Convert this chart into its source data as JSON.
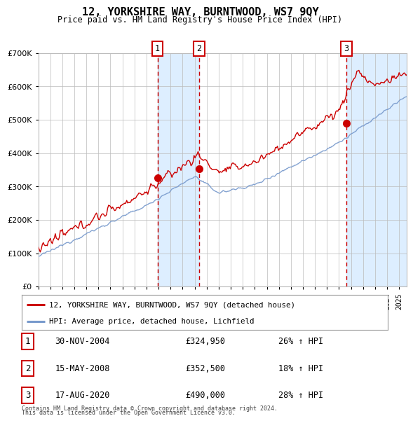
{
  "title": "12, YORKSHIRE WAY, BURNTWOOD, WS7 9QY",
  "subtitle": "Price paid vs. HM Land Registry's House Price Index (HPI)",
  "legend_line1": "12, YORKSHIRE WAY, BURNTWOOD, WS7 9QY (detached house)",
  "legend_line2": "HPI: Average price, detached house, Lichfield",
  "transactions": [
    {
      "num": 1,
      "date": "30-NOV-2004",
      "price": 324950,
      "pct": "26%",
      "dir": "↑"
    },
    {
      "num": 2,
      "date": "15-MAY-2008",
      "price": 352500,
      "pct": "18%",
      "dir": "↑"
    },
    {
      "num": 3,
      "date": "17-AUG-2020",
      "price": 490000,
      "pct": "28%",
      "dir": "↑"
    }
  ],
  "footer1": "Contains HM Land Registry data © Crown copyright and database right 2024.",
  "footer2": "This data is licensed under the Open Government Licence v3.0.",
  "hpi_color": "#7799cc",
  "price_color": "#cc0000",
  "marker_color": "#cc0000",
  "vline_color": "#cc0000",
  "shade_color": "#ddeeff",
  "grid_color": "#bbbbbb",
  "bg_color": "#ffffff",
  "ylim": [
    0,
    700000
  ],
  "yticks": [
    0,
    100000,
    200000,
    300000,
    400000,
    500000,
    600000,
    700000
  ],
  "start_year": 1995,
  "end_year": 2025,
  "t1_year": 2004.916,
  "t2_year": 2008.37,
  "t3_year": 2020.626,
  "t1_price": 324950,
  "t2_price": 352500,
  "t3_price": 490000
}
